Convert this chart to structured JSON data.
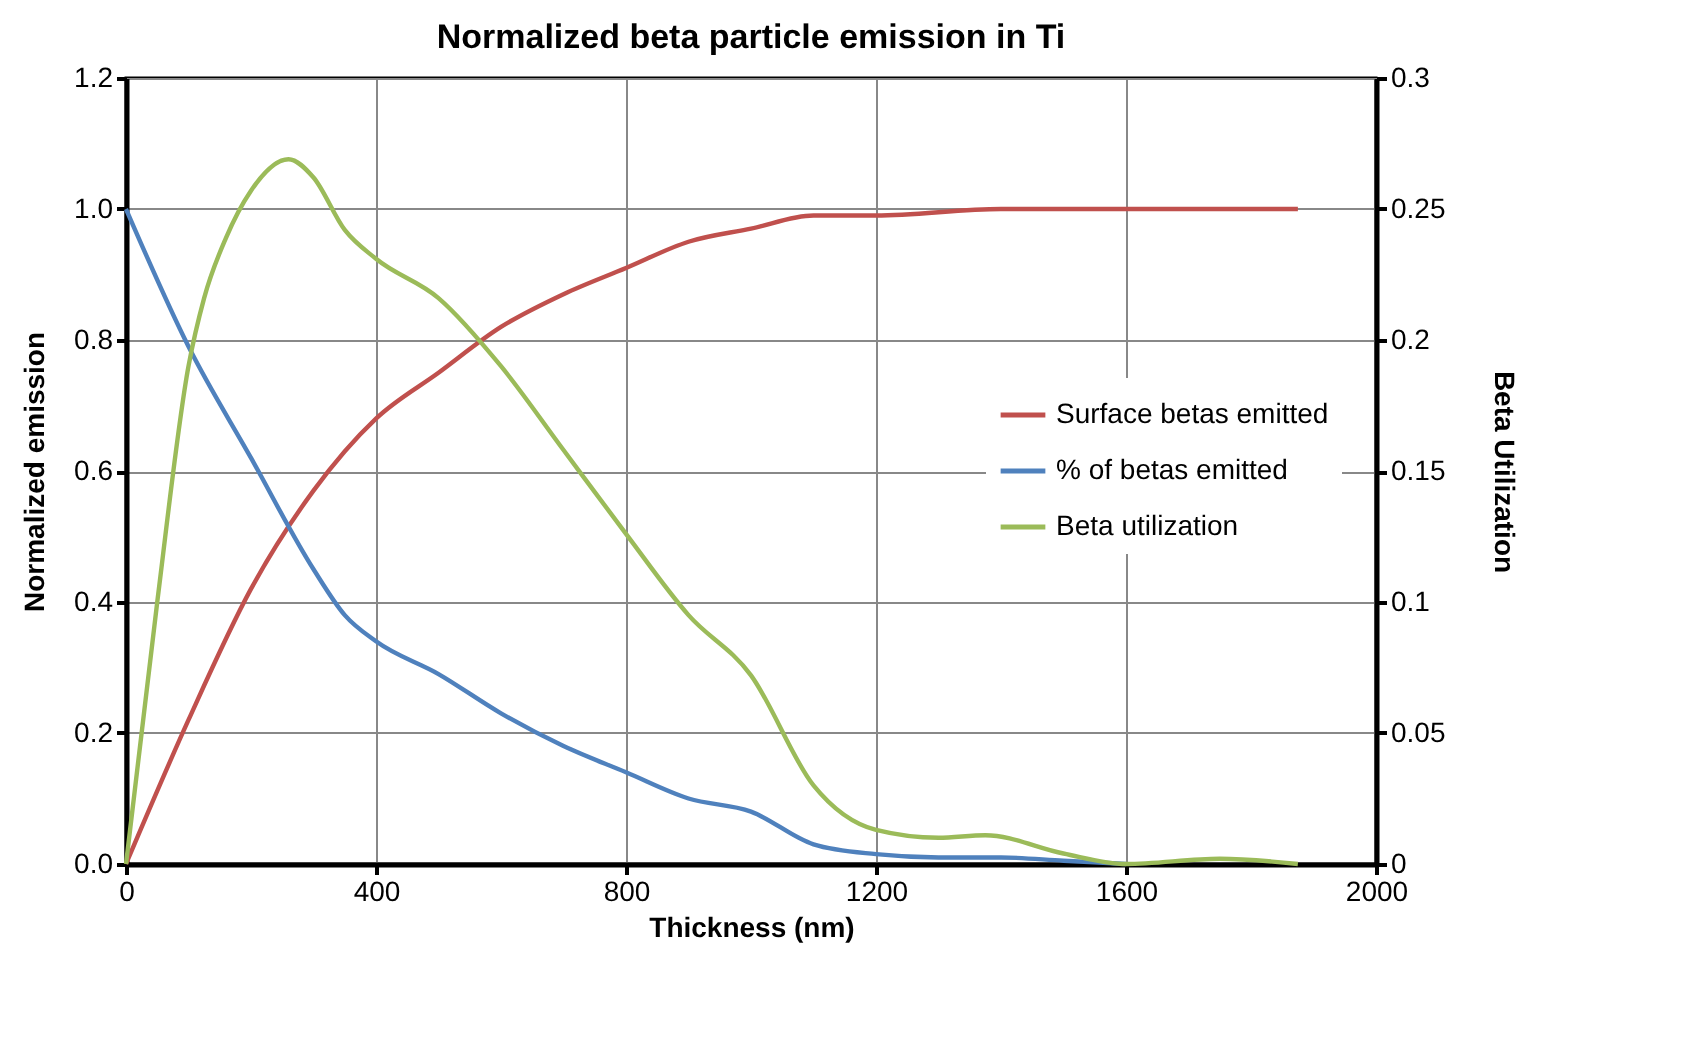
{
  "chart_data": {
    "type": "line",
    "title": "Normalized beta particle emission in Ti",
    "xlabel": "Thickness (nm)",
    "ylabel": "Normalized emission",
    "y2label": "Beta Utilization",
    "xlim": [
      0,
      2000
    ],
    "xticks": [
      0,
      400,
      800,
      1200,
      1600,
      2000
    ],
    "ylim": [
      0,
      1.2
    ],
    "yticks": [
      {
        "value": 0,
        "label": "0.0"
      },
      {
        "value": 0.2,
        "label": "0.2"
      },
      {
        "value": 0.4,
        "label": "0.4"
      },
      {
        "value": 0.6,
        "label": "0.6"
      },
      {
        "value": 0.8,
        "label": "0.8"
      },
      {
        "value": 1,
        "label": "1.0"
      },
      {
        "value": 1.2,
        "label": "1.2"
      }
    ],
    "y2lim": [
      0,
      0.3
    ],
    "y2ticks": [
      0,
      0.05,
      0.1,
      0.15,
      0.2,
      0.25,
      0.3
    ],
    "grid": true,
    "legend": "right",
    "marker": "none",
    "line_style": "solid",
    "series": [
      {
        "name": "Surface betas emitted",
        "color": "#c0504d",
        "x": [
          0,
          100,
          200,
          300,
          400,
          500,
          600,
          700,
          800,
          900,
          1000,
          1100,
          1200,
          1400,
          1600,
          1875
        ],
        "values": [
          0,
          0.22,
          0.42,
          0.57,
          0.68,
          0.75,
          0.82,
          0.87,
          0.91,
          0.95,
          0.97,
          0.99,
          0.99,
          1.0,
          1.0,
          1.0
        ]
      },
      {
        "name": "% of betas emitted",
        "color": "#4f81bd",
        "x": [
          0,
          100,
          200,
          300,
          350,
          400,
          500,
          600,
          700,
          800,
          900,
          1000,
          1100,
          1200,
          1300,
          1400,
          1500,
          1600
        ],
        "values": [
          1.0,
          0.79,
          0.62,
          0.45,
          0.38,
          0.34,
          0.29,
          0.23,
          0.18,
          0.14,
          0.1,
          0.08,
          0.03,
          0.015,
          0.01,
          0.01,
          0.005,
          0
        ]
      },
      {
        "name": "Beta utilization",
        "color": "#9bbb59",
        "axis": "y2",
        "x": [
          0,
          50,
          100,
          125,
          160,
          200,
          260,
          300,
          350,
          400,
          500,
          600,
          700,
          800,
          900,
          1000,
          1100,
          1200,
          1300,
          1375,
          1500,
          1600,
          1750,
          1875
        ],
        "values": [
          0,
          0.1,
          0.19,
          0.216,
          0.239,
          0.257,
          0.269,
          0.262,
          0.242,
          0.231,
          0.216,
          0.19,
          0.158,
          0.126,
          0.095,
          0.072,
          0.03,
          0.013,
          0.01,
          0.011,
          0.004,
          0,
          0.002,
          0
        ]
      }
    ]
  }
}
